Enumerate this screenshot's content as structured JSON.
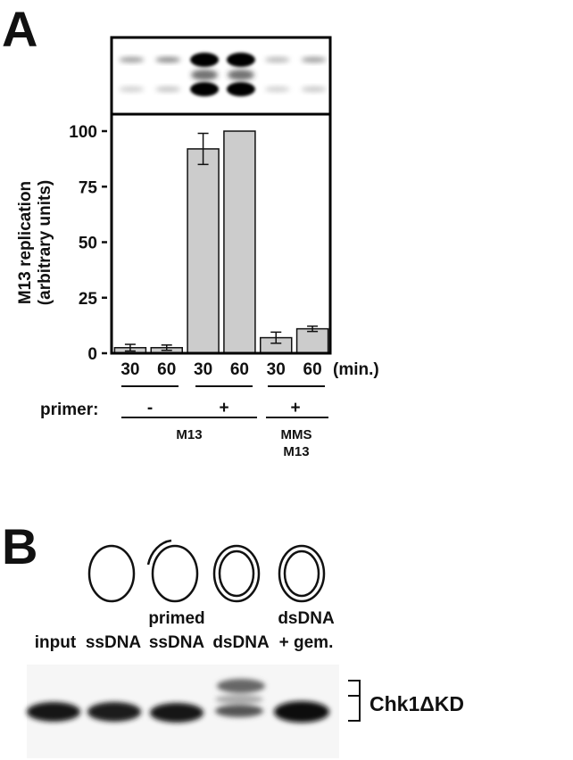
{
  "panel_a": {
    "letter": "A",
    "chart_data": {
      "type": "bar",
      "categories": [
        "30",
        "60",
        "30",
        "60",
        "30",
        "60"
      ],
      "values": [
        2.5,
        2.5,
        92,
        100,
        7,
        11
      ],
      "errors": [
        1.5,
        1.2,
        7,
        0,
        2.5,
        1.2
      ],
      "ylabel_line1": "M13 replication",
      "ylabel_line2": "(arbitrary units)",
      "ylim": [
        0,
        100
      ],
      "yticks": [
        "0",
        "25",
        "50",
        "75",
        "100"
      ],
      "x_unit": "(min.)",
      "bar_color": "#cccccc",
      "grid": false
    },
    "primer_label": "primer:",
    "primer_groups": [
      "-",
      "+",
      "+"
    ],
    "template_groups": [
      {
        "line1": "M13",
        "line2": ""
      },
      {
        "line1": "MMS",
        "line2": "M13"
      }
    ]
  },
  "panel_b": {
    "letter": "B",
    "lanes": [
      {
        "line1": "",
        "line2": "input",
        "diagram": "none"
      },
      {
        "line1": "",
        "line2": "ssDNA",
        "diagram": "single-circle"
      },
      {
        "line1": "primed",
        "line2": "ssDNA",
        "diagram": "primed-circle"
      },
      {
        "line1": "",
        "line2": "dsDNA",
        "diagram": "double-circle"
      },
      {
        "line1": "dsDNA",
        "line2": "+ gem.",
        "diagram": "double-circle"
      }
    ],
    "blot_label": "Chk1ΔKD"
  }
}
